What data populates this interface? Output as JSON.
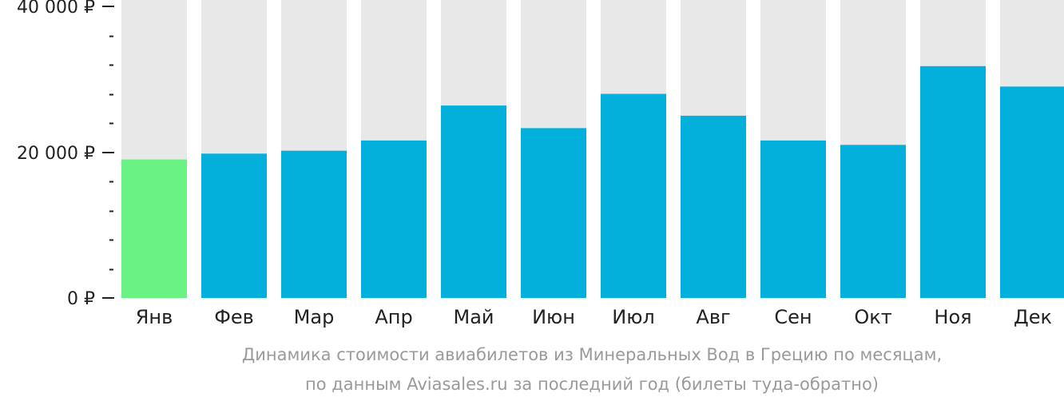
{
  "chart_data": {
    "type": "bar",
    "categories": [
      "Янв",
      "Фев",
      "Мар",
      "Апр",
      "Май",
      "Июн",
      "Июл",
      "Авг",
      "Сен",
      "Окт",
      "Ноя",
      "Дек"
    ],
    "values": [
      19000,
      19800,
      20200,
      21600,
      26400,
      23300,
      28000,
      25000,
      21600,
      21000,
      31800,
      29000
    ],
    "highlight_index": 0,
    "ylim": [
      0,
      40000
    ],
    "yticks": [
      {
        "value": 0,
        "label": "0 ₽"
      },
      {
        "value": 20000,
        "label": "20 000 ₽"
      },
      {
        "value": 40000,
        "label": "40 000 ₽"
      }
    ],
    "minor_tick_step": 4000,
    "caption_line1": "Динамика стоимости авиабилетов из Минеральных Вод в Грецию по месяцам,",
    "caption_line2": "по данным Aviasales.ru за последний год (билеты туда-обратно)",
    "colors": {
      "bar": "#03b0dc",
      "highlight": "#6bf285",
      "track": "#e8e8e8",
      "axis": "#222222",
      "caption": "#9a9a9a"
    }
  }
}
